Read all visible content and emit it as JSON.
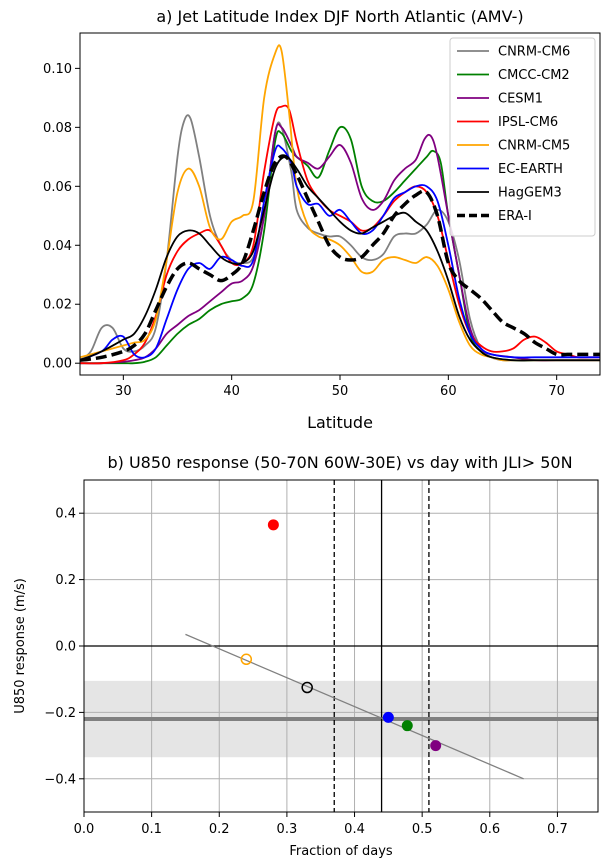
{
  "chart_data": [
    {
      "type": "line",
      "title": "a) Jet Latitude Index DJF North Atlantic (AMV-)",
      "xlabel": "Latitude",
      "ylabel": "",
      "xlim": [
        26,
        74
      ],
      "ylim": [
        -0.004,
        0.112
      ],
      "xticks": [
        "30",
        "40",
        "50",
        "60",
        "70"
      ],
      "xtick_values": [
        30,
        40,
        50,
        60,
        70
      ],
      "yticks": [
        "0.00",
        "0.02",
        "0.04",
        "0.06",
        "0.08",
        "0.10"
      ],
      "ytick_values": [
        0,
        0.02,
        0.04,
        0.06,
        0.08,
        0.1
      ],
      "grid": false,
      "legend_position": "top-right",
      "series": [
        {
          "name": "CNRM-CM6",
          "color": "#808080",
          "dash": "solid",
          "x": [
            26,
            27,
            28,
            29,
            30,
            31,
            32,
            33,
            34,
            35,
            35.6,
            36.2,
            37,
            38,
            39,
            40,
            41,
            42,
            43,
            44,
            44.6,
            45.5,
            46,
            47,
            48,
            49,
            50,
            51,
            52,
            53,
            54,
            55,
            56,
            57,
            58,
            59,
            60,
            61,
            62,
            63,
            64,
            65,
            66,
            67,
            68,
            69,
            70,
            72,
            74
          ],
          "y": [
            0.001,
            0.004,
            0.012,
            0.012,
            0.005,
            0.004,
            0.006,
            0.012,
            0.035,
            0.07,
            0.082,
            0.083,
            0.07,
            0.05,
            0.04,
            0.035,
            0.034,
            0.036,
            0.05,
            0.078,
            0.08,
            0.065,
            0.052,
            0.046,
            0.044,
            0.043,
            0.043,
            0.04,
            0.036,
            0.035,
            0.037,
            0.043,
            0.044,
            0.044,
            0.047,
            0.052,
            0.048,
            0.035,
            0.015,
            0.005,
            0.002,
            0.001,
            0.001,
            0.001,
            0.001,
            0.001,
            0.001,
            0.001,
            0.001
          ]
        },
        {
          "name": "CMCC-CM2",
          "color": "#008000",
          "dash": "solid",
          "x": [
            26,
            28,
            30,
            31,
            32,
            33,
            34,
            35,
            36,
            37,
            38,
            39,
            40,
            41,
            42,
            43,
            44,
            44.6,
            45.5,
            46,
            47,
            48,
            49,
            50,
            51,
            52,
            53,
            54,
            55,
            56,
            57,
            58,
            58.6,
            59.3,
            60,
            61,
            62,
            63,
            64,
            66,
            68,
            70,
            72,
            74
          ],
          "y": [
            0,
            0,
            0,
            0,
            0.0005,
            0.002,
            0.006,
            0.01,
            0.013,
            0.015,
            0.018,
            0.02,
            0.021,
            0.022,
            0.027,
            0.045,
            0.075,
            0.078,
            0.072,
            0.07,
            0.067,
            0.063,
            0.072,
            0.08,
            0.076,
            0.06,
            0.055,
            0.055,
            0.058,
            0.062,
            0.066,
            0.07,
            0.072,
            0.068,
            0.05,
            0.03,
            0.01,
            0.004,
            0.002,
            0.001,
            0.001,
            0.001,
            0.001,
            0.001
          ]
        },
        {
          "name": "CESM1",
          "color": "#800080",
          "dash": "solid",
          "x": [
            26,
            28,
            30,
            31,
            32,
            33,
            34,
            35,
            36,
            37,
            38,
            39,
            40,
            41,
            42,
            43,
            44,
            44.6,
            45.5,
            46,
            47,
            48,
            49,
            50,
            51,
            52,
            53,
            54,
            55,
            56,
            57,
            57.8,
            58.4,
            59,
            60,
            61,
            62,
            63,
            64,
            66,
            68,
            70,
            72,
            74
          ],
          "y": [
            0,
            0,
            0.0005,
            0.001,
            0.002,
            0.005,
            0.01,
            0.013,
            0.016,
            0.018,
            0.021,
            0.024,
            0.027,
            0.028,
            0.033,
            0.05,
            0.078,
            0.08,
            0.074,
            0.07,
            0.068,
            0.066,
            0.07,
            0.074,
            0.068,
            0.056,
            0.052,
            0.055,
            0.062,
            0.066,
            0.069,
            0.076,
            0.077,
            0.07,
            0.05,
            0.03,
            0.012,
            0.005,
            0.003,
            0.002,
            0.001,
            0.001,
            0.001,
            0.001
          ]
        },
        {
          "name": "IPSL-CM6",
          "color": "#ff0000",
          "dash": "solid",
          "x": [
            26,
            28,
            30,
            31,
            32,
            33,
            34,
            35,
            36,
            37,
            38,
            39,
            40,
            41,
            42,
            43,
            44,
            44.6,
            45.3,
            46,
            47,
            48,
            49,
            50,
            51,
            52,
            53,
            54,
            55,
            56,
            57,
            58,
            59,
            60,
            61,
            62,
            63,
            64,
            65,
            66,
            67,
            68,
            69,
            70,
            71,
            72,
            73,
            74
          ],
          "y": [
            0,
            0,
            0.001,
            0.003,
            0.007,
            0.016,
            0.03,
            0.038,
            0.042,
            0.044,
            0.045,
            0.04,
            0.034,
            0.034,
            0.04,
            0.065,
            0.084,
            0.087,
            0.086,
            0.075,
            0.062,
            0.056,
            0.052,
            0.05,
            0.048,
            0.045,
            0.046,
            0.05,
            0.055,
            0.058,
            0.06,
            0.058,
            0.05,
            0.035,
            0.02,
            0.01,
            0.006,
            0.004,
            0.004,
            0.005,
            0.008,
            0.009,
            0.007,
            0.004,
            0.003,
            0.002,
            0.002,
            0.002
          ]
        },
        {
          "name": "CNRM-CM5",
          "color": "#ffa500",
          "dash": "solid",
          "x": [
            26,
            28,
            30,
            31,
            32,
            33,
            34,
            35,
            36,
            37,
            38,
            39,
            40,
            41,
            42,
            43,
            44,
            44.6,
            45.3,
            46,
            47,
            48,
            49,
            50,
            51,
            52,
            53,
            54,
            55,
            56,
            57,
            58,
            59,
            60,
            61,
            62,
            63,
            64,
            65,
            66,
            68,
            70,
            72,
            74
          ],
          "y": [
            0.002,
            0.004,
            0.006,
            0.007,
            0.008,
            0.015,
            0.035,
            0.058,
            0.066,
            0.06,
            0.046,
            0.042,
            0.048,
            0.05,
            0.055,
            0.09,
            0.105,
            0.106,
            0.085,
            0.06,
            0.047,
            0.043,
            0.042,
            0.04,
            0.036,
            0.031,
            0.031,
            0.035,
            0.036,
            0.035,
            0.034,
            0.036,
            0.033,
            0.025,
            0.014,
            0.006,
            0.003,
            0.002,
            0.001,
            0.001,
            0.001,
            0.001,
            0.001,
            0.001
          ]
        },
        {
          "name": "EC-EARTH",
          "color": "#0000ff",
          "dash": "solid",
          "x": [
            26,
            28,
            29,
            30,
            31,
            32,
            33,
            34,
            35,
            36,
            37,
            38,
            39,
            40,
            41,
            42,
            43,
            44,
            44.6,
            45.5,
            46,
            47,
            48,
            49,
            50,
            51,
            52,
            53,
            54,
            55,
            56,
            57,
            58,
            59,
            60,
            61,
            62,
            63,
            64,
            66,
            68,
            70,
            72,
            74
          ],
          "y": [
            0.001,
            0.004,
            0.008,
            0.009,
            0.003,
            0.002,
            0.005,
            0.015,
            0.025,
            0.032,
            0.034,
            0.032,
            0.036,
            0.035,
            0.033,
            0.035,
            0.055,
            0.072,
            0.073,
            0.068,
            0.06,
            0.054,
            0.054,
            0.05,
            0.052,
            0.048,
            0.044,
            0.045,
            0.05,
            0.056,
            0.058,
            0.06,
            0.06,
            0.055,
            0.04,
            0.022,
            0.01,
            0.005,
            0.003,
            0.002,
            0.002,
            0.002,
            0.002,
            0.002
          ]
        },
        {
          "name": "HagGEM3",
          "color": "#000000",
          "dash": "solid",
          "x": [
            26,
            28,
            30,
            31,
            32,
            33,
            34,
            35,
            36,
            37,
            38,
            39,
            40,
            41,
            42,
            43,
            44,
            45,
            46,
            47,
            48,
            49,
            50,
            51,
            52,
            53,
            54,
            55,
            56,
            57,
            58,
            59,
            60,
            61,
            62,
            63,
            64,
            66,
            68,
            70,
            72,
            74
          ],
          "y": [
            0.001,
            0.004,
            0.008,
            0.01,
            0.016,
            0.025,
            0.036,
            0.043,
            0.045,
            0.044,
            0.04,
            0.036,
            0.034,
            0.034,
            0.038,
            0.052,
            0.066,
            0.07,
            0.066,
            0.06,
            0.056,
            0.052,
            0.048,
            0.045,
            0.044,
            0.046,
            0.048,
            0.05,
            0.051,
            0.048,
            0.045,
            0.038,
            0.028,
            0.016,
            0.008,
            0.004,
            0.002,
            0.001,
            0.001,
            0.001,
            0.001,
            0.001
          ]
        },
        {
          "name": "ERA-I",
          "color": "#000000",
          "dash": "dashed",
          "x": [
            26,
            28,
            30,
            31,
            32,
            33,
            34,
            35,
            36,
            37,
            38,
            39,
            40,
            41,
            42,
            43,
            44,
            45,
            46,
            47,
            48,
            49,
            50,
            51,
            52,
            53,
            54,
            55,
            56,
            57,
            58,
            59,
            60,
            61,
            62,
            63,
            64,
            65,
            66,
            67,
            68,
            69,
            70,
            71,
            72,
            73,
            74
          ],
          "y": [
            0.001,
            0.002,
            0.004,
            0.006,
            0.01,
            0.018,
            0.026,
            0.032,
            0.034,
            0.032,
            0.03,
            0.028,
            0.03,
            0.034,
            0.045,
            0.058,
            0.068,
            0.07,
            0.064,
            0.056,
            0.048,
            0.04,
            0.036,
            0.035,
            0.036,
            0.04,
            0.044,
            0.05,
            0.054,
            0.057,
            0.058,
            0.05,
            0.034,
            0.028,
            0.025,
            0.022,
            0.018,
            0.014,
            0.012,
            0.01,
            0.007,
            0.005,
            0.003,
            0.003,
            0.003,
            0.003,
            0.003
          ]
        }
      ]
    },
    {
      "type": "scatter",
      "title": "b) U850 response (50-70N 60W-30E) vs day with JLI> 50N",
      "xlabel": "Fraction of days",
      "ylabel": "U850 response (m/s)",
      "xlim": [
        0.0,
        0.76
      ],
      "ylim": [
        -0.5,
        0.5
      ],
      "xticks": [
        "0.0",
        "0.1",
        "0.2",
        "0.3",
        "0.4",
        "0.5",
        "0.6",
        "0.7"
      ],
      "xtick_values": [
        0.0,
        0.1,
        0.2,
        0.3,
        0.4,
        0.5,
        0.6,
        0.7
      ],
      "yticks": [
        "−0.4",
        "−0.2",
        "0.0",
        "0.2",
        "0.4"
      ],
      "ytick_values": [
        -0.4,
        -0.2,
        0.0,
        0.2,
        0.4
      ],
      "grid": true,
      "points": [
        {
          "model": "IPSL-CM6",
          "x": 0.28,
          "y": 0.365,
          "color": "#ff0000",
          "filled": true
        },
        {
          "model": "CNRM-CM5",
          "x": 0.24,
          "y": -0.04,
          "color": "#ffa500",
          "filled": false
        },
        {
          "model": "HagGEM3",
          "x": 0.33,
          "y": -0.125,
          "color": "#000000",
          "filled": false
        },
        {
          "model": "EC-EARTH",
          "x": 0.45,
          "y": -0.215,
          "color": "#0000ff",
          "filled": true
        },
        {
          "model": "CMCC-CM2",
          "x": 0.478,
          "y": -0.24,
          "color": "#008000",
          "filled": true
        },
        {
          "model": "CESM1",
          "x": 0.52,
          "y": -0.3,
          "color": "#800080",
          "filled": true
        }
      ],
      "regression_line": {
        "x": [
          0.15,
          0.65
        ],
        "y": [
          0.035,
          -0.4
        ],
        "color": "#808080"
      },
      "reference_band": {
        "y_low": -0.335,
        "y_high": -0.105,
        "color": "#e5e5e5"
      },
      "reference_hline": {
        "y": -0.22,
        "color": "#808080"
      },
      "zero_hline": {
        "y": 0.0,
        "color": "#000000"
      },
      "vline_solid": {
        "x": 0.44,
        "color": "#000000"
      },
      "vlines_dashed": [
        {
          "x": 0.37,
          "color": "#000000"
        },
        {
          "x": 0.51,
          "color": "#000000"
        }
      ]
    }
  ]
}
